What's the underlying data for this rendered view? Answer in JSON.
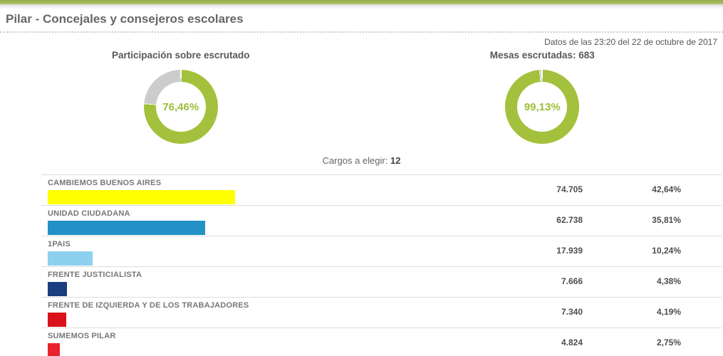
{
  "header": {
    "title": "Pilar - Concejales y consejeros escolares",
    "timestamp": "Datos de las 23:20 del 22 de octubre de 2017"
  },
  "summary": {
    "cargos_label": "Cargos a elegir:",
    "cargos_value": "12"
  },
  "donuts": [
    {
      "title": "Participación sobre escrutado",
      "percent": 76.46,
      "value_label": "76,46%"
    },
    {
      "title": "Mesas escrutadas: 683",
      "percent": 99.13,
      "value_label": "99,13%"
    }
  ],
  "parties": [
    {
      "name": "CAMBIEMOS BUENOS AIRES",
      "votes": "74.705",
      "percent": 42.64,
      "percent_label": "42,64%",
      "color": "#ffff00"
    },
    {
      "name": "UNIDAD CIUDADANA",
      "votes": "62.738",
      "percent": 35.81,
      "percent_label": "35,81%",
      "color": "#2191c6"
    },
    {
      "name": "1PAIS",
      "votes": "17.939",
      "percent": 10.24,
      "percent_label": "10,24%",
      "color": "#8dd0f0"
    },
    {
      "name": "FRENTE JUSTICIALISTA",
      "votes": "7.666",
      "percent": 4.38,
      "percent_label": "4,38%",
      "color": "#1b3d7f"
    },
    {
      "name": "FRENTE DE IZQUIERDA Y DE LOS TRABAJADORES",
      "votes": "7.340",
      "percent": 4.19,
      "percent_label": "4,19%",
      "color": "#da121b"
    },
    {
      "name": "SUMEMOS PILAR",
      "votes": "4.824",
      "percent": 2.75,
      "percent_label": "2,75%",
      "color": "#e8232e"
    }
  ],
  "colors": {
    "accent_green": "#a3c13c",
    "donut_gray": "#cccccc",
    "topbar_green": "#a4bd5c"
  },
  "chart_data": [
    {
      "type": "pie",
      "title": "Participación sobre escrutado",
      "labels": [
        "Participación",
        "Resto"
      ],
      "values": [
        76.46,
        23.54
      ],
      "colors": [
        "#a3c13c",
        "#cccccc"
      ],
      "center_label": "76,46%",
      "donut": true,
      "start_angle": "12 o'clock, clockwise"
    },
    {
      "type": "pie",
      "title": "Mesas escrutadas: 683",
      "labels": [
        "Mesas escrutadas",
        "Resto"
      ],
      "values": [
        99.13,
        0.87
      ],
      "colors": [
        "#a3c13c",
        "#cccccc"
      ],
      "center_label": "99,13%",
      "donut": true,
      "start_angle": "12 o'clock, clockwise"
    },
    {
      "type": "bar",
      "orientation": "horizontal",
      "title": "Cargos a elegir: 12",
      "categories": [
        "CAMBIEMOS BUENOS AIRES",
        "UNIDAD CIUDADANA",
        "1PAIS",
        "FRENTE JUSTICIALISTA",
        "FRENTE DE IZQUIERDA Y DE LOS TRABAJADORES",
        "SUMEMOS PILAR"
      ],
      "series": [
        {
          "name": "Votos",
          "values": [
            74705,
            62738,
            17939,
            7666,
            7340,
            4824
          ]
        },
        {
          "name": "Porcentaje",
          "values": [
            42.64,
            35.81,
            10.24,
            4.38,
            4.19,
            2.75
          ]
        }
      ],
      "bar_colors": [
        "#ffff00",
        "#2191c6",
        "#8dd0f0",
        "#1b3d7f",
        "#da121b",
        "#e8232e"
      ],
      "xlim": [
        0,
        100
      ],
      "grid": false,
      "legend": "none"
    }
  ]
}
